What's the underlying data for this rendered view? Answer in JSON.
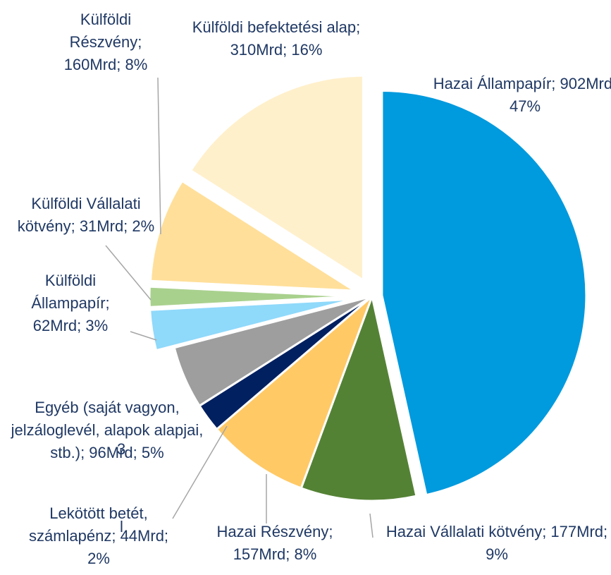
{
  "chart_data": {
    "type": "pie",
    "categories": [
      "Hazai Állampapír",
      "Hazai Vállalati kötvény",
      "Hazai Részvény",
      "Lekötött betét, számlapénz",
      "Egyéb (saját vagyon, jelzáloglevél, alapok alapjai, stb.)",
      "Külföldi Állampapír",
      "Külföldi Vállalati kötvény",
      "Külföldi Részvény",
      "Külföldi befektetési alap"
    ],
    "values": [
      902,
      177,
      157,
      44,
      96,
      62,
      31,
      160,
      310
    ],
    "value_labels": [
      "Hazai Állampapír; 902Mrd; 47%",
      "Hazai Vállalati kötvény; 177Mrd; 9%",
      "Hazai Részvény; 157Mrd; 8%",
      "Lekötött betét, számlapénz; 44Mrd; 2%",
      "Egyéb (saját vagyon, jelzáloglevél, alapok alapjai, stb.); 96Mrd; 5%",
      "Külföldi Állampapír; 62Mrd; 3%",
      "Külföldi Vállalati kötvény; 31Mrd; 2%",
      "Külföldi Részvény; 160Mrd; 8%",
      "Külföldi befektetési alap; 310Mrd; 16%"
    ],
    "colors": [
      "#009ade",
      "#548235",
      "#ffc966",
      "#002060",
      "#9e9e9e",
      "#8fd9fb",
      "#a9d18e",
      "#ffdf9a",
      "#fff0cc"
    ],
    "annotations": [
      "3",
      "l"
    ]
  }
}
